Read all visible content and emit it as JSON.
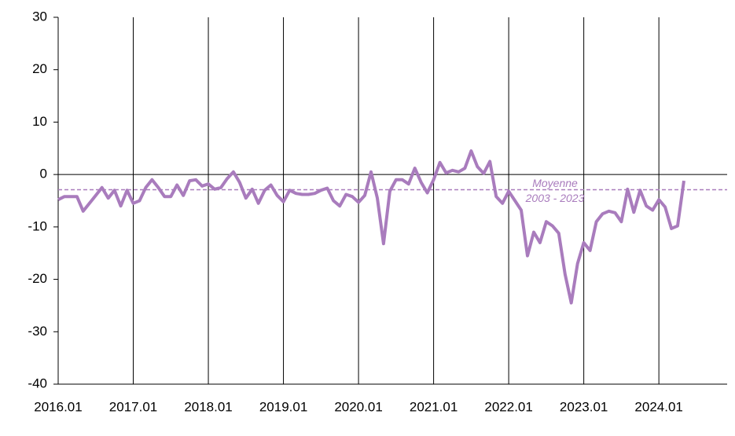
{
  "chart_data": {
    "type": "line",
    "categories": [
      "2016.01",
      null,
      null,
      null,
      null,
      null,
      null,
      null,
      null,
      null,
      null,
      null,
      "2017.01",
      null,
      null,
      null,
      null,
      null,
      null,
      null,
      null,
      null,
      null,
      null,
      "2018.01",
      null,
      null,
      null,
      null,
      null,
      null,
      null,
      null,
      null,
      null,
      null,
      "2019.01",
      null,
      null,
      null,
      null,
      null,
      null,
      null,
      null,
      null,
      null,
      null,
      "2020.01",
      null,
      null,
      null,
      null,
      null,
      null,
      null,
      null,
      null,
      null,
      null,
      "2021.01",
      null,
      null,
      null,
      null,
      null,
      null,
      null,
      null,
      null,
      null,
      null,
      "2022.01",
      null,
      null,
      null,
      null,
      null,
      null,
      null,
      null,
      null,
      null,
      null,
      "2023.01",
      null,
      null,
      null,
      null,
      null,
      null,
      null,
      null,
      null,
      null,
      null,
      "2024.01",
      null,
      null,
      null,
      null,
      null,
      null,
      null,
      null,
      null,
      null,
      null
    ],
    "series": [
      {
        "color": "#a97cbd",
        "values": [
          -4.8,
          -4.2,
          -4.2,
          -4.2,
          -7,
          -5.5,
          -4,
          -2.5,
          -4.5,
          -3,
          -6,
          -3,
          -5.5,
          -5,
          -2.5,
          -1,
          -2.5,
          -4.2,
          -4.2,
          -2,
          -4,
          -1.2,
          -1,
          -2.2,
          -1.8,
          -2.8,
          -2.5,
          -0.8,
          0.5,
          -1.5,
          -4.5,
          -2.8,
          -5.5,
          -3,
          -2,
          -4,
          -5.2,
          -3,
          -3.6,
          -3.8,
          -3.8,
          -3.6,
          -3,
          -2.6,
          -5,
          -6,
          -3.8,
          -4.2,
          -5.3,
          -4,
          0.5,
          -4.5,
          -13.2,
          -3.2,
          -1,
          -1,
          -1.8,
          1.2,
          -1.5,
          -3.5,
          -1,
          2.3,
          0.3,
          0.8,
          0.5,
          1.2,
          4.5,
          1.5,
          0.2,
          2.5,
          -4.2,
          -5.5,
          -3.2,
          -5,
          -6.8,
          -15.5,
          -11,
          -13,
          -9,
          -9.8,
          -11.2,
          -19,
          -24.5,
          -17,
          -13,
          -14.5,
          -9,
          -7.5,
          -7,
          -7.3,
          -9,
          -2.8,
          -7.2,
          -3,
          -6,
          -6.8,
          -4.8,
          -6.2,
          -10.3,
          -9.8,
          -1.2,
          null,
          null,
          null,
          null,
          null,
          null,
          null
        ]
      }
    ],
    "average": {
      "value": -2.9,
      "label": [
        "Moyenne",
        "2003 - 2023"
      ]
    },
    "ylim": [
      -40,
      30
    ],
    "yticks": [
      -40,
      -30,
      -20,
      -10,
      0,
      10,
      20,
      30
    ]
  }
}
